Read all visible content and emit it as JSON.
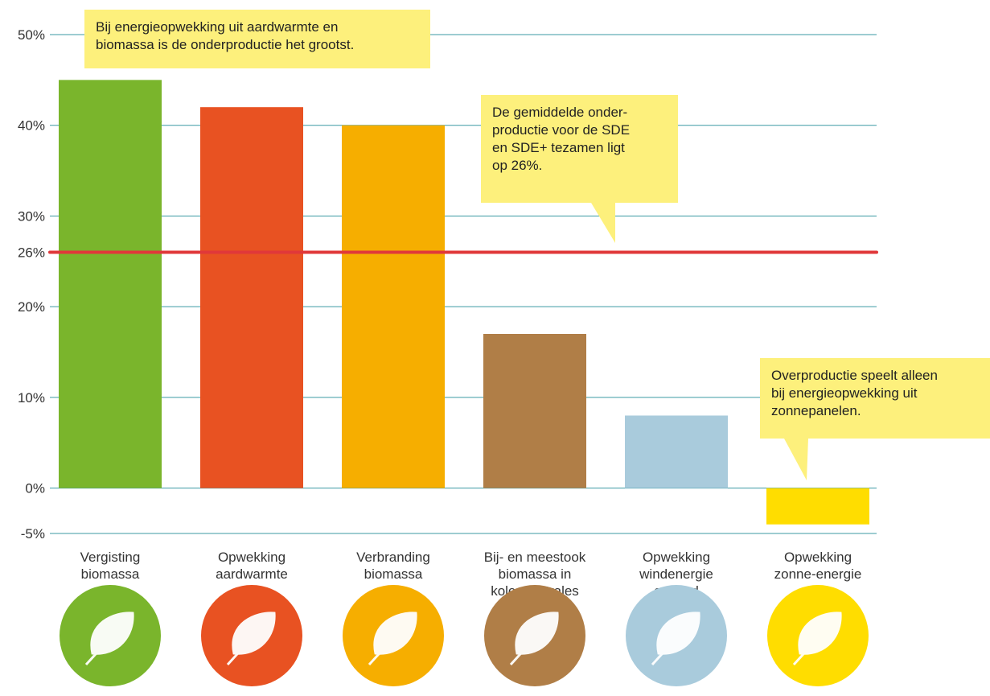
{
  "chart_data": {
    "type": "bar",
    "categories": [
      "Vergisting\nbiomassa",
      "Opwekking\naardwarmte",
      "Verbranding\nbiomassa",
      "Bij- en meestook\nbiomassa in\nkolencentrales",
      "Opwekking\nwindenergie\nop land",
      "Opwekking\nzonne-energie"
    ],
    "values": [
      45,
      42,
      40,
      17,
      8,
      -4
    ],
    "colors": [
      "#7ab52c",
      "#e85222",
      "#f6ae00",
      "#b07e47",
      "#a9cbdc",
      "#ffdd00"
    ],
    "ylim": [
      -5,
      50
    ],
    "yticks": [
      {
        "value": -5,
        "label": "-5%"
      },
      {
        "value": 0,
        "label": "0%"
      },
      {
        "value": 10,
        "label": "10%"
      },
      {
        "value": 20,
        "label": "20%"
      },
      {
        "value": 26,
        "label": "26%"
      },
      {
        "value": 30,
        "label": "30%"
      },
      {
        "value": 40,
        "label": "40%"
      },
      {
        "value": 50,
        "label": "50%"
      }
    ],
    "grid": true,
    "grid_color": "#3b9aa3",
    "reference_line": {
      "value": 26,
      "color": "#e0383a"
    },
    "annotations": [
      {
        "text": "Bij energieopwekking uit aardwarmte en\nbiomassa is de onderproductie het grootst."
      },
      {
        "text": "De gemiddelde onder-\nproductie voor de SDE\nen SDE+ tezamen ligt\nop 26%."
      },
      {
        "text": "Overproductie speelt alleen\nbij energieopwekking uit\nzonnepanelen."
      }
    ]
  }
}
